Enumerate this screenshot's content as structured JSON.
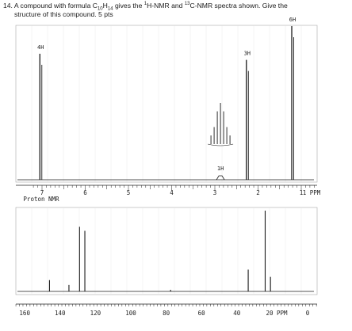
{
  "question": {
    "number": "14.",
    "line1_pre": "A compound with formula C",
    "c_count": "10",
    "h_letter": "H",
    "h_count": "14",
    "line1_mid": " gives the ",
    "h_sup": "1",
    "h_nmr": "H-NMR and ",
    "c_sup": "13",
    "c_nmr": "C-NMR spectra shown. Give the",
    "line2": "structure of this compound.  5 pts"
  },
  "colors": {
    "ink": "#222222",
    "frame": "#a9a9a9",
    "spectrum": "#1a1a1a"
  },
  "h_nmr": {
    "axis_label": "Proton NMR",
    "unit_label": "1 PPM",
    "tick_labels": [
      "7",
      "6",
      "5",
      "4",
      "3",
      "2",
      "1"
    ],
    "peaks": [
      {
        "ppm": 7.05,
        "label": "4H",
        "height": 0.82
      },
      {
        "ppm": 2.87,
        "label": "1H",
        "height": 0.03,
        "multiplet": true
      },
      {
        "ppm": 2.27,
        "label": "3H",
        "height": 0.78
      },
      {
        "ppm": 1.22,
        "label": "6H",
        "height": 1.0
      }
    ]
  },
  "c_nmr": {
    "unit_label": "20 PPM",
    "tick_labels": [
      "160",
      "140",
      "120",
      "100",
      "80",
      "60",
      "40",
      "20",
      "0"
    ],
    "peaks": [
      {
        "ppm": 146.0,
        "height": 0.14
      },
      {
        "ppm": 135.0,
        "height": 0.08
      },
      {
        "ppm": 129.0,
        "height": 0.8
      },
      {
        "ppm": 126.0,
        "height": 0.75
      },
      {
        "ppm": 77.5,
        "height": 0.02
      },
      {
        "ppm": 33.6,
        "height": 0.27
      },
      {
        "ppm": 24.0,
        "height": 1.0
      },
      {
        "ppm": 21.0,
        "height": 0.18
      }
    ]
  }
}
